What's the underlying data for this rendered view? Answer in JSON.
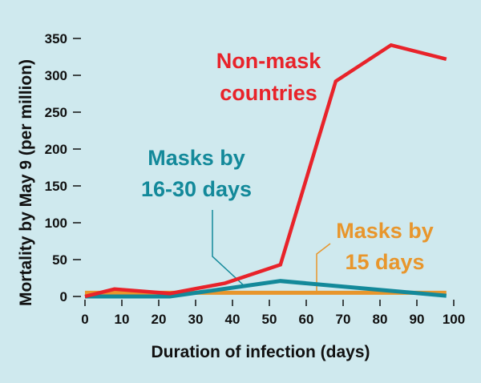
{
  "chart_data": {
    "type": "line",
    "title": "",
    "xlabel": "Duration of infection (days)",
    "ylabel": "Mortality by May 9 (per million)",
    "xlim": [
      0,
      100
    ],
    "ylim": [
      0,
      350
    ],
    "xticks": [
      0,
      10,
      20,
      30,
      40,
      50,
      60,
      70,
      80,
      90,
      100
    ],
    "yticks": [
      0,
      50,
      100,
      150,
      200,
      250,
      300,
      350
    ],
    "grid": false,
    "series": [
      {
        "name": "Non-mask countries",
        "color": "#e8232a",
        "x": [
          0,
          8,
          23,
          38,
          53,
          68,
          83,
          98
        ],
        "y": [
          0,
          10,
          4,
          18,
          43,
          292,
          341,
          322
        ]
      },
      {
        "name": "Masks by 16-30 days",
        "color": "#13899a",
        "x": [
          0,
          23,
          53,
          98
        ],
        "y": [
          0,
          0,
          21,
          1
        ]
      },
      {
        "name": "Masks by 15 days",
        "color": "#e8962c",
        "x": [
          0,
          98
        ],
        "y": [
          5,
          5
        ]
      }
    ],
    "annotations": [
      {
        "series": 0,
        "lines": [
          "Non-mask",
          "countries"
        ],
        "color": "#e8232a"
      },
      {
        "series": 1,
        "lines": [
          "Masks by",
          "16-30 days"
        ],
        "color": "#13899a"
      },
      {
        "series": 2,
        "lines": [
          "Masks by",
          "15 days"
        ],
        "color": "#e8962c"
      }
    ]
  }
}
